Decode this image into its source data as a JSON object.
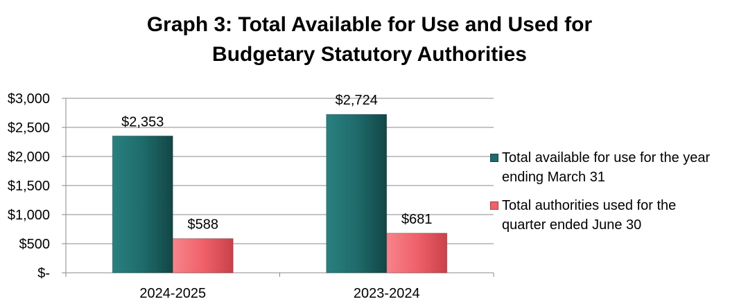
{
  "chart_data": {
    "type": "bar",
    "title_lines": [
      "Graph 3: Total Available for Use and Used for",
      "Budgetary Statutory Authorities"
    ],
    "categories": [
      "2024-2025",
      "2023-2024"
    ],
    "series": [
      {
        "name": "Total available for use for the year ending March 31",
        "name_lines": [
          "Total available for use for the year",
          "ending March 31"
        ],
        "color": "#1f6b6b",
        "values": [
          2353,
          2724
        ],
        "labels": [
          "$2,353",
          "$2,724"
        ]
      },
      {
        "name": "Total authorities used for the quarter ended June 30",
        "name_lines": [
          "Total authorities used for the",
          "quarter ended June 30"
        ],
        "color": "#f0616a",
        "values": [
          588,
          681
        ],
        "labels": [
          "$588",
          "$681"
        ]
      }
    ],
    "y_ticks": [
      0,
      500,
      1000,
      1500,
      2000,
      2500,
      3000
    ],
    "y_tick_labels": [
      "$-",
      "$500",
      "$1,000",
      "$1,500",
      "$2,000",
      "$2,500",
      "$3,000"
    ],
    "ylim": [
      0,
      3000
    ],
    "grid": true,
    "legend_position": "right"
  }
}
